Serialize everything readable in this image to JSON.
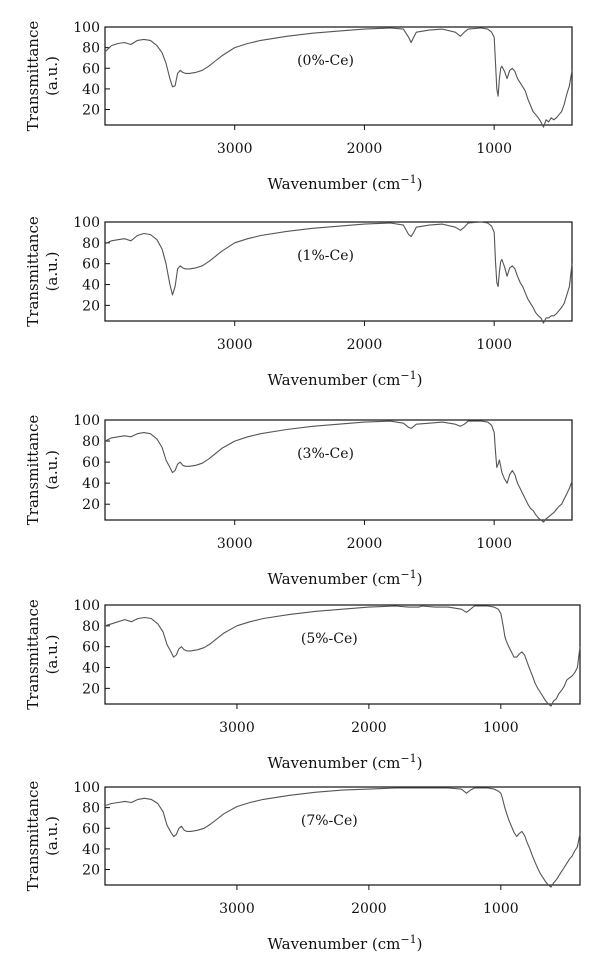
{
  "chart_data": [
    {
      "type": "line",
      "label": "(0%-Ce)",
      "xlabel": "Wavenumber (cm",
      "xlabel_sup": "−1",
      "xlabel_end": ")",
      "ylabel_line1": "Transmittance",
      "ylabel_line2": "(a.u.)",
      "xlim": [
        4000,
        400
      ],
      "ylim": [
        5,
        100
      ],
      "xticks": [
        3000,
        2000,
        1000
      ],
      "yticks": [
        20,
        40,
        60,
        80,
        100
      ],
      "series": [
        {
          "x": [
            4000,
            3950,
            3900,
            3850,
            3800,
            3750,
            3700,
            3650,
            3600,
            3560,
            3530,
            3500,
            3480,
            3460,
            3440,
            3420,
            3400,
            3380,
            3350,
            3300,
            3250,
            3200,
            3150,
            3100,
            3000,
            2900,
            2800,
            2600,
            2400,
            2200,
            2000,
            1800,
            1700,
            1660,
            1640,
            1620,
            1600,
            1500,
            1400,
            1300,
            1260,
            1230,
            1200,
            1100,
            1050,
            1020,
            1000,
            990,
            980,
            970,
            960,
            950,
            940,
            920,
            900,
            880,
            860,
            840,
            820,
            800,
            780,
            760,
            740,
            720,
            700,
            680,
            660,
            640,
            620,
            600,
            580,
            560,
            540,
            520,
            500,
            480,
            460,
            440,
            420,
            400
          ],
          "y": [
            76,
            82,
            84,
            85,
            83,
            87,
            88,
            87,
            82,
            75,
            65,
            50,
            42,
            43,
            55,
            58,
            56,
            55,
            55,
            56,
            58,
            62,
            67,
            72,
            80,
            84,
            87,
            91,
            94,
            96,
            98,
            99,
            98,
            90,
            85,
            90,
            95,
            97,
            98,
            95,
            91,
            95,
            98,
            99,
            98,
            95,
            90,
            65,
            40,
            33,
            50,
            60,
            62,
            57,
            50,
            58,
            60,
            57,
            50,
            46,
            42,
            38,
            30,
            24,
            18,
            15,
            12,
            8,
            3,
            10,
            8,
            12,
            10,
            12,
            15,
            18,
            25,
            35,
            43,
            58
          ]
        }
      ]
    },
    {
      "type": "line",
      "label": "(1%-Ce)",
      "xlabel": "Wavenumber (cm",
      "xlabel_sup": "−1",
      "xlabel_end": ")",
      "ylabel_line1": "Transmittance",
      "ylabel_line2": "(a.u.)",
      "xlim": [
        4000,
        400
      ],
      "ylim": [
        5,
        100
      ],
      "xticks": [
        3000,
        2000,
        1000
      ],
      "yticks": [
        20,
        40,
        60,
        80,
        100
      ],
      "series": [
        {
          "x": [
            4000,
            3950,
            3900,
            3850,
            3800,
            3750,
            3700,
            3650,
            3600,
            3560,
            3530,
            3500,
            3480,
            3460,
            3440,
            3420,
            3400,
            3380,
            3350,
            3300,
            3250,
            3200,
            3150,
            3100,
            3000,
            2900,
            2800,
            2600,
            2400,
            2200,
            2000,
            1800,
            1700,
            1660,
            1640,
            1620,
            1600,
            1500,
            1400,
            1300,
            1260,
            1230,
            1200,
            1100,
            1050,
            1020,
            1000,
            990,
            980,
            970,
            960,
            950,
            940,
            920,
            900,
            880,
            860,
            840,
            820,
            800,
            780,
            760,
            740,
            720,
            700,
            680,
            660,
            640,
            620,
            600,
            580,
            560,
            540,
            520,
            500,
            480,
            460,
            440,
            420,
            400
          ],
          "y": [
            79,
            82,
            83,
            84,
            82,
            87,
            89,
            88,
            83,
            74,
            60,
            40,
            30,
            38,
            55,
            58,
            56,
            55,
            55,
            56,
            58,
            62,
            67,
            72,
            80,
            84,
            87,
            91,
            94,
            96,
            98,
            99,
            97,
            88,
            86,
            90,
            95,
            97,
            98,
            95,
            92,
            95,
            99,
            100,
            99,
            96,
            90,
            62,
            42,
            38,
            52,
            62,
            64,
            57,
            48,
            56,
            58,
            55,
            48,
            42,
            38,
            32,
            26,
            22,
            18,
            13,
            10,
            8,
            3,
            8,
            8,
            10,
            10,
            12,
            15,
            18,
            22,
            30,
            38,
            60
          ]
        }
      ]
    },
    {
      "type": "line",
      "label": "(3%-Ce)",
      "xlabel": "Wavenumber (cm",
      "xlabel_sup": "−1",
      "xlabel_end": ")",
      "ylabel_line1": "Transmittance",
      "ylabel_line2": "(a.u.)",
      "xlim": [
        4000,
        400
      ],
      "ylim": [
        5,
        100
      ],
      "xticks": [
        3000,
        2000,
        1000
      ],
      "yticks": [
        20,
        40,
        60,
        80,
        100
      ],
      "series": [
        {
          "x": [
            4000,
            3950,
            3900,
            3850,
            3800,
            3750,
            3700,
            3650,
            3600,
            3560,
            3530,
            3500,
            3480,
            3460,
            3440,
            3420,
            3400,
            3380,
            3350,
            3300,
            3250,
            3200,
            3150,
            3100,
            3000,
            2900,
            2800,
            2600,
            2400,
            2200,
            2000,
            1800,
            1700,
            1660,
            1640,
            1620,
            1600,
            1500,
            1400,
            1300,
            1260,
            1230,
            1200,
            1100,
            1050,
            1020,
            1000,
            990,
            980,
            970,
            960,
            950,
            940,
            920,
            900,
            880,
            860,
            840,
            820,
            800,
            780,
            760,
            740,
            720,
            700,
            680,
            660,
            640,
            620,
            600,
            580,
            560,
            540,
            520,
            500,
            480,
            460,
            440,
            420,
            400
          ],
          "y": [
            80,
            83,
            84,
            85,
            84,
            87,
            88,
            87,
            82,
            74,
            62,
            55,
            50,
            52,
            58,
            60,
            57,
            56,
            56,
            57,
            59,
            63,
            68,
            73,
            80,
            84,
            87,
            91,
            94,
            96,
            98,
            99,
            97,
            93,
            92,
            94,
            96,
            97,
            98,
            96,
            94,
            96,
            99,
            99,
            98,
            95,
            88,
            70,
            55,
            58,
            62,
            56,
            50,
            44,
            40,
            48,
            52,
            48,
            40,
            35,
            30,
            25,
            20,
            16,
            14,
            10,
            7,
            5,
            3,
            6,
            8,
            10,
            12,
            15,
            18,
            20,
            25,
            30,
            35,
            42
          ]
        }
      ]
    },
    {
      "type": "line",
      "label": "(5%-Ce)",
      "xlabel": "Wavenumber (cm",
      "xlabel_sup": "−1",
      "xlabel_end": ")",
      "ylabel_line1": "Transmittance",
      "ylabel_line2": "(a.u.)",
      "xlim": [
        4000,
        400
      ],
      "ylim": [
        5,
        100
      ],
      "xticks": [
        3000,
        2000,
        1000
      ],
      "yticks": [
        20,
        40,
        60,
        80,
        100
      ],
      "series": [
        {
          "x": [
            4000,
            3950,
            3900,
            3850,
            3800,
            3750,
            3700,
            3650,
            3600,
            3560,
            3530,
            3500,
            3480,
            3460,
            3440,
            3420,
            3400,
            3380,
            3350,
            3300,
            3250,
            3200,
            3150,
            3100,
            3000,
            2900,
            2800,
            2600,
            2400,
            2200,
            2000,
            1800,
            1700,
            1660,
            1640,
            1620,
            1600,
            1500,
            1400,
            1300,
            1260,
            1230,
            1200,
            1100,
            1050,
            1020,
            1000,
            990,
            980,
            970,
            960,
            950,
            940,
            920,
            900,
            880,
            860,
            840,
            820,
            800,
            780,
            760,
            740,
            720,
            700,
            680,
            660,
            640,
            620,
            600,
            580,
            560,
            540,
            520,
            500,
            480,
            460,
            440,
            420,
            400
          ],
          "y": [
            80,
            82,
            84,
            86,
            84,
            87,
            88,
            87,
            82,
            74,
            62,
            55,
            50,
            52,
            58,
            60,
            57,
            56,
            56,
            57,
            59,
            63,
            68,
            73,
            80,
            84,
            87,
            91,
            94,
            96,
            98,
            99,
            98,
            98,
            98,
            98,
            99,
            98,
            98,
            96,
            93,
            96,
            99,
            99,
            98,
            96,
            92,
            85,
            78,
            70,
            66,
            63,
            60,
            55,
            50,
            50,
            53,
            55,
            52,
            45,
            38,
            32,
            25,
            20,
            16,
            12,
            8,
            5,
            3,
            8,
            10,
            15,
            18,
            22,
            28,
            30,
            32,
            35,
            40,
            60
          ]
        }
      ]
    },
    {
      "type": "line",
      "label": "(7%-Ce)",
      "xlabel": "Wavenumber (cm",
      "xlabel_sup": "−1",
      "xlabel_end": ")",
      "ylabel_line1": "Transmittance",
      "ylabel_line2": "(a.u.)",
      "xlim": [
        4000,
        400
      ],
      "ylim": [
        5,
        100
      ],
      "xticks": [
        3000,
        2000,
        1000
      ],
      "yticks": [
        20,
        40,
        60,
        80,
        100
      ],
      "series": [
        {
          "x": [
            4000,
            3950,
            3900,
            3850,
            3800,
            3750,
            3700,
            3650,
            3600,
            3560,
            3530,
            3500,
            3480,
            3460,
            3440,
            3420,
            3400,
            3380,
            3350,
            3300,
            3250,
            3200,
            3150,
            3100,
            3000,
            2900,
            2800,
            2600,
            2400,
            2200,
            2000,
            1800,
            1700,
            1660,
            1640,
            1620,
            1600,
            1500,
            1400,
            1300,
            1260,
            1230,
            1200,
            1100,
            1050,
            1020,
            1000,
            990,
            980,
            970,
            960,
            950,
            940,
            920,
            900,
            880,
            860,
            840,
            820,
            800,
            780,
            760,
            740,
            720,
            700,
            680,
            660,
            640,
            620,
            600,
            580,
            560,
            540,
            520,
            500,
            480,
            460,
            440,
            420,
            400
          ],
          "y": [
            82,
            84,
            85,
            86,
            85,
            88,
            89,
            88,
            84,
            76,
            63,
            56,
            52,
            54,
            60,
            62,
            58,
            57,
            57,
            58,
            60,
            64,
            69,
            74,
            81,
            85,
            88,
            92,
            95,
            97,
            98,
            99,
            99,
            99,
            99,
            99,
            99,
            99,
            99,
            98,
            94,
            97,
            99,
            99,
            98,
            96,
            94,
            90,
            85,
            80,
            76,
            72,
            68,
            62,
            56,
            52,
            55,
            57,
            53,
            46,
            40,
            33,
            27,
            21,
            16,
            12,
            8,
            5,
            3,
            7,
            10,
            14,
            18,
            22,
            26,
            30,
            33,
            38,
            42,
            55
          ]
        }
      ]
    }
  ]
}
